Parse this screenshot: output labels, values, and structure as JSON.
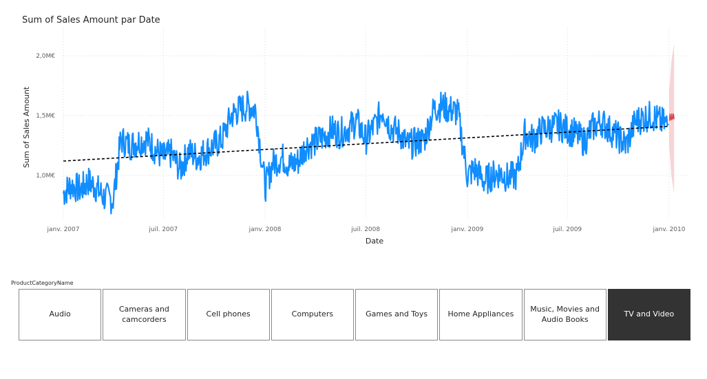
{
  "chart_data": {
    "type": "line",
    "title": "Sum of Sales Amount par Date",
    "xlabel": "Date",
    "ylabel": "Sum of Sales Amount",
    "x_ticks": [
      "janv. 2007",
      "juil. 2007",
      "janv. 2008",
      "juil. 2008",
      "janv. 2009",
      "juil. 2009",
      "janv. 2010"
    ],
    "y_ticks": [
      "1,0M€",
      "1,5M€",
      "2,0M€"
    ],
    "ylim": [
      0.7,
      2.2
    ],
    "xlim": [
      "2007-01-01",
      "2010-01-10"
    ],
    "grid": true,
    "series": [
      {
        "role": "actual",
        "color": "#118DFF",
        "points": [
          [
            "2007-01-01",
            0.85
          ],
          [
            "2007-01-15",
            0.92
          ],
          [
            "2007-02-01",
            0.88
          ],
          [
            "2007-02-15",
            0.95
          ],
          [
            "2007-03-01",
            0.9
          ],
          [
            "2007-03-15",
            0.82
          ],
          [
            "2007-04-01",
            0.8
          ],
          [
            "2007-04-15",
            1.3
          ],
          [
            "2007-05-01",
            1.25
          ],
          [
            "2007-05-15",
            1.28
          ],
          [
            "2007-06-01",
            1.3
          ],
          [
            "2007-06-15",
            1.22
          ],
          [
            "2007-07-01",
            1.15
          ],
          [
            "2007-07-15",
            1.18
          ],
          [
            "2007-08-01",
            1.05
          ],
          [
            "2007-08-15",
            1.2
          ],
          [
            "2007-09-01",
            1.15
          ],
          [
            "2007-09-15",
            1.2
          ],
          [
            "2007-10-01",
            1.25
          ],
          [
            "2007-10-15",
            1.3
          ],
          [
            "2007-11-01",
            1.5
          ],
          [
            "2007-11-15",
            1.55
          ],
          [
            "2007-12-01",
            1.58
          ],
          [
            "2007-12-15",
            1.55
          ],
          [
            "2008-01-01",
            0.9
          ],
          [
            "2008-01-15",
            1.1
          ],
          [
            "2008-02-01",
            1.15
          ],
          [
            "2008-02-15",
            1.08
          ],
          [
            "2008-03-01",
            1.12
          ],
          [
            "2008-03-15",
            1.25
          ],
          [
            "2008-04-01",
            1.28
          ],
          [
            "2008-04-15",
            1.32
          ],
          [
            "2008-05-01",
            1.38
          ],
          [
            "2008-05-15",
            1.35
          ],
          [
            "2008-06-01",
            1.4
          ],
          [
            "2008-06-15",
            1.45
          ],
          [
            "2008-07-01",
            1.3
          ],
          [
            "2008-07-15",
            1.4
          ],
          [
            "2008-08-01",
            1.55
          ],
          [
            "2008-08-15",
            1.4
          ],
          [
            "2008-09-01",
            1.35
          ],
          [
            "2008-09-15",
            1.25
          ],
          [
            "2008-10-01",
            1.28
          ],
          [
            "2008-10-15",
            1.3
          ],
          [
            "2008-11-01",
            1.55
          ],
          [
            "2008-11-15",
            1.58
          ],
          [
            "2008-12-01",
            1.55
          ],
          [
            "2008-12-15",
            1.52
          ],
          [
            "2009-01-01",
            1.0
          ],
          [
            "2009-01-15",
            1.05
          ],
          [
            "2009-02-01",
            0.95
          ],
          [
            "2009-02-15",
            1.0
          ],
          [
            "2009-03-01",
            1.02
          ],
          [
            "2009-03-15",
            0.98
          ],
          [
            "2009-04-01",
            1.0
          ],
          [
            "2009-04-15",
            1.35
          ],
          [
            "2009-05-01",
            1.3
          ],
          [
            "2009-05-15",
            1.38
          ],
          [
            "2009-06-01",
            1.4
          ],
          [
            "2009-06-15",
            1.42
          ],
          [
            "2009-07-01",
            1.38
          ],
          [
            "2009-07-15",
            1.35
          ],
          [
            "2009-08-01",
            1.28
          ],
          [
            "2009-08-15",
            1.4
          ],
          [
            "2009-09-01",
            1.45
          ],
          [
            "2009-09-15",
            1.38
          ],
          [
            "2009-10-01",
            1.32
          ],
          [
            "2009-10-15",
            1.25
          ],
          [
            "2009-11-01",
            1.45
          ],
          [
            "2009-11-15",
            1.48
          ],
          [
            "2009-12-01",
            1.5
          ],
          [
            "2009-12-15",
            1.45
          ],
          [
            "2009-12-31",
            1.42
          ]
        ]
      },
      {
        "role": "forecast",
        "color": "#D64550",
        "band_color": "#F5C6C8",
        "points": [
          [
            "2010-01-01",
            1.48,
            1.25,
            1.7
          ],
          [
            "2010-01-05",
            1.46,
            1.0,
            1.95
          ],
          [
            "2010-01-10",
            1.47,
            0.85,
            2.1
          ]
        ]
      },
      {
        "role": "trend",
        "color": "#000000",
        "points": [
          [
            "2007-01-01",
            1.12
          ],
          [
            "2010-01-01",
            1.41
          ]
        ]
      }
    ]
  },
  "slicer": {
    "title": "ProductCategoryName",
    "items": [
      {
        "label": "Audio",
        "selected": false
      },
      {
        "label": "Cameras and camcorders",
        "selected": false
      },
      {
        "label": "Cell phones",
        "selected": false
      },
      {
        "label": "Computers",
        "selected": false
      },
      {
        "label": "Games and Toys",
        "selected": false
      },
      {
        "label": "Home Appliances",
        "selected": false
      },
      {
        "label": "Music, Movies and Audio Books",
        "selected": false
      },
      {
        "label": "TV and Video",
        "selected": true
      }
    ]
  }
}
